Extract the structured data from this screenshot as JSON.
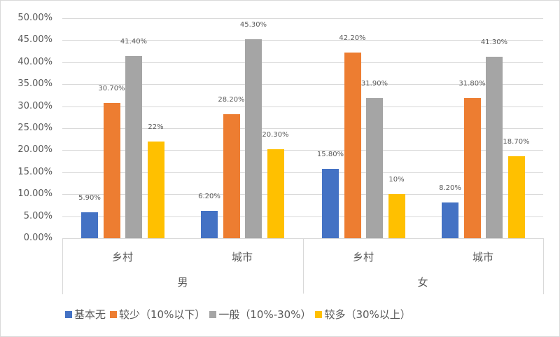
{
  "chart_data": {
    "type": "bar",
    "title": "",
    "xlabel": "",
    "ylabel": "",
    "ylim": [
      0,
      50
    ],
    "y_tick_labels": [
      "0.00%",
      "5.00%",
      "10.00%",
      "15.00%",
      "20.00%",
      "25.00%",
      "30.00%",
      "35.00%",
      "40.00%",
      "45.00%",
      "50.00%"
    ],
    "grid": true,
    "legend_position": "bottom",
    "category_groups": [
      {
        "label": "男",
        "categories": [
          "乡村",
          "城市"
        ]
      },
      {
        "label": "女",
        "categories": [
          "乡村",
          "城市"
        ]
      }
    ],
    "categories": [
      "男-乡村",
      "男-城市",
      "女-乡村",
      "女-城市"
    ],
    "series": [
      {
        "name": "基本无",
        "color": "#4472C4",
        "values": [
          5.9,
          6.2,
          15.8,
          8.2
        ],
        "labels": [
          "5.90%",
          "6.20%",
          "15.80%",
          "8.20%"
        ]
      },
      {
        "name": "较少（10%以下）",
        "color": "#ED7D31",
        "values": [
          30.7,
          28.2,
          42.2,
          31.8
        ],
        "labels": [
          "30.70%",
          "28.20%",
          "42.20%",
          "31.80%"
        ]
      },
      {
        "name": "一般（10%-30%）",
        "color": "#A5A5A5",
        "values": [
          41.4,
          45.3,
          31.9,
          41.3
        ],
        "labels": [
          "41.40%",
          "45.30%",
          "31.90%",
          "41.30%"
        ]
      },
      {
        "name": "较多（30%以上）",
        "color": "#FFC000",
        "values": [
          22,
          20.3,
          10,
          18.7
        ],
        "labels": [
          "22%",
          "20.30%",
          "10%",
          "18.70%"
        ]
      }
    ]
  },
  "axis": {
    "sub_categories": [
      "乡村",
      "城市",
      "乡村",
      "城市"
    ],
    "groups": [
      "男",
      "女"
    ]
  },
  "legend": {
    "items": [
      "基本无",
      "较少（10%以下）",
      "一般（10%-30%）",
      "较多（30%以上）"
    ]
  }
}
